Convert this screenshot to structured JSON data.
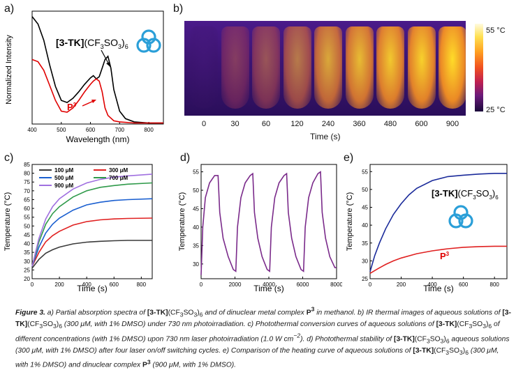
{
  "panels": {
    "a": {
      "label": "a)",
      "xlabel": "Wavelength (nm)",
      "ylabel": "Normalized Intensity",
      "xticks": [
        "400",
        "500",
        "600",
        "700",
        "800"
      ],
      "compound_main": "[3-TK]",
      "compound_suffix": "(CF",
      "compound_sub1": "3",
      "compound_mid": "SO",
      "compound_sub2": "3",
      "compound_end": ")",
      "compound_sub3": "6",
      "p3": "P",
      "p3_sup": "3"
    },
    "b": {
      "label": "b)",
      "times": [
        "0",
        "30",
        "60",
        "120",
        "240",
        "360",
        "480",
        "600",
        "900"
      ],
      "xlabel": "Time (s)",
      "scale_max": "55 °C",
      "scale_min": "25 °C"
    },
    "c": {
      "label": "c)",
      "xlabel": "Time (s)",
      "ylabel": "Temperature (°C)",
      "yticks": [
        "20",
        "25",
        "30",
        "35",
        "40",
        "45",
        "50",
        "55",
        "60",
        "65",
        "70",
        "75",
        "80",
        "85"
      ],
      "xticks": [
        "0",
        "200",
        "400",
        "600",
        "800"
      ]
    },
    "d": {
      "label": "d)",
      "xlabel": "Time (s)",
      "ylabel": "Temperature (°C)",
      "yticks": [
        "30",
        "35",
        "40",
        "45",
        "50",
        "55"
      ],
      "xticks": [
        "0",
        "2000",
        "4000",
        "6000",
        "8000"
      ]
    },
    "e": {
      "label": "e)",
      "xlabel": "Time (s)",
      "ylabel": "Temperature (°C)",
      "yticks": [
        "25",
        "30",
        "35",
        "40",
        "45",
        "50",
        "55"
      ],
      "xticks": [
        "0",
        "200",
        "400",
        "600",
        "800"
      ],
      "compound_main": "[3-TK]",
      "p3": "P",
      "p3_sup": "3"
    }
  },
  "chart_data": [
    {
      "type": "line",
      "panel": "a",
      "xlabel": "Wavelength (nm)",
      "ylabel": "Normalized Intensity",
      "xlim": [
        400,
        850
      ],
      "series": [
        {
          "name": "[3-TK](CF3SO3)6",
          "color": "#000000",
          "x": [
            400,
            420,
            440,
            460,
            480,
            500,
            520,
            540,
            560,
            580,
            600,
            610,
            620,
            630,
            640,
            650,
            660,
            670,
            680,
            700,
            720,
            750,
            800,
            850
          ],
          "y": [
            1.0,
            0.93,
            0.78,
            0.55,
            0.35,
            0.22,
            0.2,
            0.24,
            0.3,
            0.37,
            0.43,
            0.45,
            0.42,
            0.44,
            0.52,
            0.6,
            0.63,
            0.52,
            0.32,
            0.12,
            0.05,
            0.02,
            0.01,
            0.01
          ]
        },
        {
          "name": "P3",
          "color": "#e00000",
          "x": [
            400,
            420,
            440,
            460,
            480,
            500,
            520,
            540,
            560,
            580,
            600,
            610,
            620,
            630,
            640,
            650,
            660,
            680,
            700,
            750,
            800,
            850
          ],
          "y": [
            0.6,
            0.58,
            0.5,
            0.36,
            0.22,
            0.12,
            0.11,
            0.15,
            0.22,
            0.3,
            0.37,
            0.4,
            0.42,
            0.4,
            0.3,
            0.15,
            0.08,
            0.03,
            0.02,
            0.01,
            0.01,
            0.01
          ]
        }
      ]
    },
    {
      "type": "line",
      "panel": "c",
      "xlabel": "Time (s)",
      "ylabel": "Temperature (°C)",
      "ylim": [
        20,
        85
      ],
      "xlim": [
        0,
        880
      ],
      "series": [
        {
          "name": "100 μM",
          "color": "#3a3a3a",
          "x": [
            0,
            50,
            100,
            150,
            200,
            300,
            400,
            500,
            600,
            700,
            880
          ],
          "y": [
            26,
            31,
            34.5,
            36.5,
            38,
            39.8,
            40.8,
            41.3,
            41.6,
            41.8,
            41.8
          ]
        },
        {
          "name": "300 μM",
          "color": "#e02020",
          "x": [
            0,
            50,
            100,
            150,
            200,
            300,
            400,
            500,
            600,
            700,
            880
          ],
          "y": [
            27,
            35,
            41,
            44.5,
            47,
            50.5,
            52.5,
            53.5,
            54,
            54.3,
            54.5
          ]
        },
        {
          "name": "500 μM",
          "color": "#1a5fd0",
          "x": [
            0,
            50,
            100,
            150,
            200,
            300,
            400,
            500,
            600,
            700,
            880
          ],
          "y": [
            27,
            38,
            46,
            51,
            54.5,
            59,
            62,
            63.5,
            64.5,
            65,
            65.5
          ]
        },
        {
          "name": "700 μM",
          "color": "#2f9a4a",
          "x": [
            0,
            50,
            100,
            150,
            200,
            300,
            400,
            500,
            600,
            700,
            880
          ],
          "y": [
            27,
            41,
            51,
            57,
            61,
            66.5,
            70,
            72,
            73,
            73.8,
            74.5
          ]
        },
        {
          "name": "900 μM",
          "color": "#a070e0",
          "x": [
            0,
            50,
            100,
            150,
            200,
            300,
            400,
            500,
            600,
            700,
            880
          ],
          "y": [
            27,
            43,
            54,
            61,
            65.5,
            71,
            74.5,
            76.5,
            77.8,
            78.5,
            79.5
          ]
        }
      ]
    },
    {
      "type": "line",
      "panel": "d",
      "xlabel": "Time (s)",
      "ylabel": "Temperature (°C)",
      "xlim": [
        0,
        8000
      ],
      "ylim": [
        26,
        57
      ],
      "series": [
        {
          "name": "",
          "color": "#7a2a8a",
          "x": [
            0,
            100,
            250,
            500,
            800,
            1000,
            1100,
            1300,
            1600,
            1900,
            2050,
            2150,
            2350,
            2600,
            2900,
            3050,
            3150,
            3350,
            3600,
            3900,
            4050,
            4150,
            4350,
            4600,
            4900,
            5050,
            5150,
            5350,
            5600,
            5900,
            6050,
            6150,
            6350,
            6600,
            6900,
            7050,
            7150,
            7350,
            7600,
            7900,
            8000
          ],
          "y": [
            27,
            40,
            48,
            52,
            54,
            54,
            44,
            37,
            32,
            28.5,
            28,
            40,
            48,
            52,
            54,
            54.5,
            44,
            37,
            32,
            28.5,
            28,
            40,
            48,
            52,
            54,
            54.5,
            44,
            37,
            32,
            28.5,
            28,
            40,
            48,
            52,
            54.5,
            55,
            44,
            37,
            32,
            29,
            29
          ]
        }
      ]
    },
    {
      "type": "line",
      "panel": "e",
      "xlabel": "Time (s)",
      "ylabel": "Temperature (°C)",
      "xlim": [
        0,
        880
      ],
      "ylim": [
        25,
        57
      ],
      "series": [
        {
          "name": "[3-TK](CF3SO3)6",
          "color": "#1a2a9a",
          "x": [
            0,
            30,
            60,
            100,
            150,
            200,
            250,
            300,
            400,
            500,
            600,
            700,
            800,
            880
          ],
          "y": [
            27,
            31.5,
            35,
            39,
            43,
            46,
            48.5,
            50.3,
            52.5,
            53.6,
            54,
            54.3,
            54.5,
            54.5
          ]
        },
        {
          "name": "P3",
          "color": "#e02020",
          "x": [
            0,
            50,
            100,
            150,
            200,
            300,
            400,
            500,
            600,
            700,
            800,
            880
          ],
          "y": [
            26.5,
            27.8,
            29,
            30,
            30.8,
            32,
            32.8,
            33.4,
            33.8,
            34,
            34.1,
            34.1
          ]
        }
      ]
    }
  ],
  "caption": {
    "fig": "Figure 3.",
    "t1": " a) Partial absorption spectra of ",
    "tk": "[3-TK]",
    "t2": "(CF",
    "s3": "3",
    "t3": "SO",
    "t4": ")",
    "s6": "6",
    "t5": " and of dinuclear metal complex ",
    "p": "P",
    "p3": "3",
    "t6": " in methanol. b) IR thermal images of aqueous solutions of ",
    "t7": " (300 μM, with 1% DMSO) under 730 nm photoirradiation. c) Photothermal conversion curves of aqueous solutions of ",
    "t8": " of different concentrations (with 1% DMSO) upon 730 nm laser photoirradiation (1.0 W cm",
    "t8sup": "−2",
    "t9": "). d) Photothermal stability of ",
    "t10": " aqueous solutions (300 μM, with 1% DMSO) after four laser on/off switching cycles. e) Comparison of the heating curve of aqueous solutions of ",
    "t11": " (300 μM, with 1% DMSO) and dinuclear complex ",
    "t12": " (900 μM, with 1% DMSO)."
  }
}
